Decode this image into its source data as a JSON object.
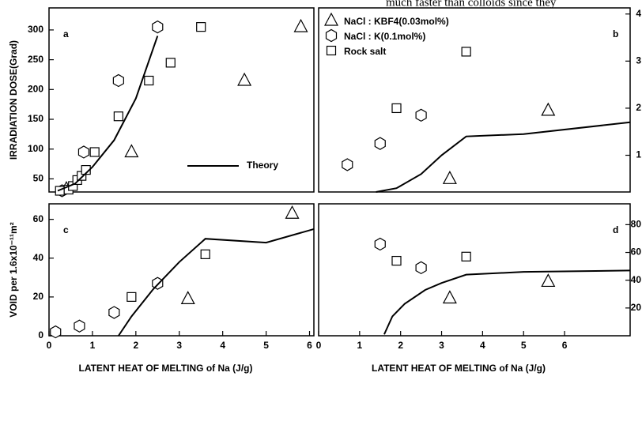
{
  "annotation": "much faster than colloids since they",
  "chart_data": [
    {
      "type": "scatter",
      "label": "a",
      "ylabel": "IRRADIATION DOSE(Grad)",
      "color": "#000000",
      "xlim": [
        0,
        6.1
      ],
      "ylim": [
        28,
        337
      ],
      "yticks": [
        50,
        100,
        150,
        200,
        250,
        300
      ],
      "y_axis": "left",
      "legend": "lower right",
      "series": [
        {
          "marker": "triangle",
          "x": [
            0.4,
            1.9,
            4.5,
            5.8
          ],
          "y": [
            33,
            95,
            215,
            305
          ]
        },
        {
          "marker": "hexagon",
          "x": [
            0.3,
            0.8,
            1.6,
            2.5
          ],
          "y": [
            30,
            95,
            215,
            305
          ]
        },
        {
          "marker": "square",
          "x": [
            0.25,
            0.45,
            0.55,
            0.65,
            0.75,
            0.85,
            1.05,
            1.6,
            2.3,
            2.8,
            3.5
          ],
          "y": [
            30,
            32,
            38,
            48,
            55,
            65,
            95,
            155,
            215,
            245,
            305
          ]
        },
        {
          "name": "Theory",
          "marker": "line",
          "x": [
            0.2,
            0.6,
            1,
            1.5,
            2,
            2.5
          ],
          "y": [
            30,
            42,
            70,
            115,
            185,
            290
          ]
        }
      ]
    },
    {
      "type": "scatter",
      "label": "b",
      "color": "#000000",
      "xlim": [
        0,
        7.6
      ],
      "ylim": [
        0.22,
        4.13
      ],
      "yticks": [
        1,
        2,
        3,
        4
      ],
      "y_axis": "right",
      "legend": "upper left",
      "series": [
        {
          "name": "NaCl : KBF4(0.03mol%)",
          "marker": "triangle",
          "x": [
            3.2,
            5.6
          ],
          "y": [
            0.5,
            1.95
          ]
        },
        {
          "name": "NaCl : K(0.1mol%)",
          "marker": "hexagon",
          "x": [
            0.7,
            1.5,
            2.5
          ],
          "y": [
            0.8,
            1.25,
            1.85
          ]
        },
        {
          "name": "Rock salt",
          "marker": "square",
          "x": [
            1.9,
            3.6
          ],
          "y": [
            2.0,
            3.2
          ]
        },
        {
          "marker": "line",
          "x": [
            1.4,
            1.9,
            2.5,
            3.0,
            3.6,
            5,
            7.6
          ],
          "y": [
            0.22,
            0.3,
            0.6,
            1.0,
            1.4,
            1.45,
            1.7
          ]
        }
      ]
    },
    {
      "type": "scatter",
      "label": "c",
      "xlabel": "LATENT HEAT OF MELTING of Na (J/g)",
      "ylabel": "VOID per 1.6x10⁻¹¹m²",
      "color": "#000000",
      "xlim": [
        0,
        6.1
      ],
      "ylim": [
        0,
        68
      ],
      "xticks": [
        0,
        1,
        2,
        3,
        4,
        5,
        6
      ],
      "yticks": [
        0,
        20,
        40,
        60
      ],
      "y_axis": "left",
      "series": [
        {
          "marker": "triangle",
          "x": [
            3.2,
            5.6
          ],
          "y": [
            19,
            63
          ]
        },
        {
          "marker": "hexagon",
          "x": [
            0.15,
            0.7,
            1.5,
            2.5
          ],
          "y": [
            2,
            5,
            12,
            27
          ]
        },
        {
          "marker": "square",
          "x": [
            1.9,
            3.6
          ],
          "y": [
            20,
            42
          ]
        },
        {
          "marker": "line",
          "x": [
            1.6,
            1.9,
            2.4,
            3.0,
            3.6,
            5,
            6.1
          ],
          "y": [
            0,
            10,
            24,
            38,
            50,
            48,
            55
          ]
        }
      ]
    },
    {
      "type": "scatter",
      "label": "d",
      "xlabel": "LATENT HEAT OF MELTING of Na (J/g)",
      "color": "#000000",
      "xlim": [
        0,
        7.6
      ],
      "ylim": [
        0,
        95
      ],
      "xticks": [
        0,
        1,
        2,
        3,
        4,
        5,
        6
      ],
      "yticks": [
        20,
        40,
        60,
        80
      ],
      "y_axis": "right",
      "series": [
        {
          "marker": "triangle",
          "x": [
            3.2,
            5.6
          ],
          "y": [
            27,
            39
          ]
        },
        {
          "marker": "hexagon",
          "x": [
            1.5,
            2.5
          ],
          "y": [
            66,
            49
          ]
        },
        {
          "marker": "square",
          "x": [
            1.9,
            3.6
          ],
          "y": [
            54,
            57
          ]
        },
        {
          "marker": "line",
          "x": [
            1.6,
            1.8,
            2.1,
            2.6,
            3.0,
            3.6,
            5,
            7.6
          ],
          "y": [
            1,
            14,
            23,
            33,
            38,
            44,
            46,
            47
          ]
        }
      ]
    }
  ]
}
